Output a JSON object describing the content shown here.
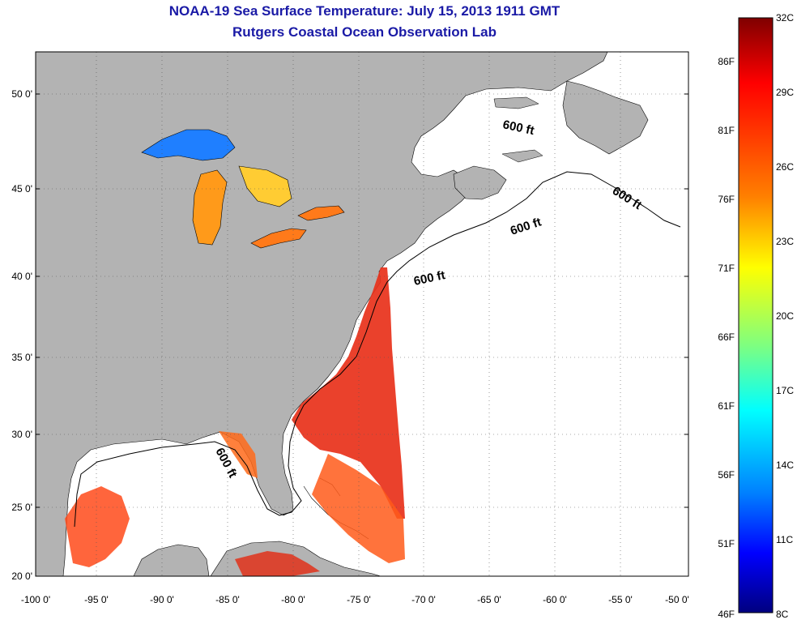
{
  "header": {
    "title": "NOAA-19 Sea Surface Temperature:  July 15, 2013 1911 GMT",
    "subtitle": "Rutgers Coastal Ocean Observation Lab"
  },
  "map": {
    "lat_labels": [
      "50 0'",
      "45 0'",
      "40 0'",
      "35 0'",
      "30 0'",
      "25 0'",
      "20 0'"
    ],
    "lon_labels": [
      "-100 0'",
      "-95 0'",
      "-90 0'",
      "-85 0'",
      "-80 0'",
      "-75 0'",
      "-70 0'",
      "-65 0'",
      "-60 0'",
      "-55 0'",
      "-50 0'"
    ],
    "contour_label": "600 ft",
    "land_color": "#b3b3b3",
    "ocean_color": "#ffffff"
  },
  "colorbar": {
    "celsius_labels": [
      "32C",
      "29C",
      "26C",
      "23C",
      "20C",
      "17C",
      "14C",
      "11C",
      "8C"
    ],
    "fahrenheit_labels": [
      "86F",
      "81F",
      "76F",
      "71F",
      "66F",
      "61F",
      "56F",
      "51F",
      "46F"
    ],
    "colors": [
      "#7f0000",
      "#ff0000",
      "#ff7f00",
      "#ffff00",
      "#7fff7f",
      "#00ffff",
      "#007fff",
      "#0000ff",
      "#00007f"
    ]
  }
}
